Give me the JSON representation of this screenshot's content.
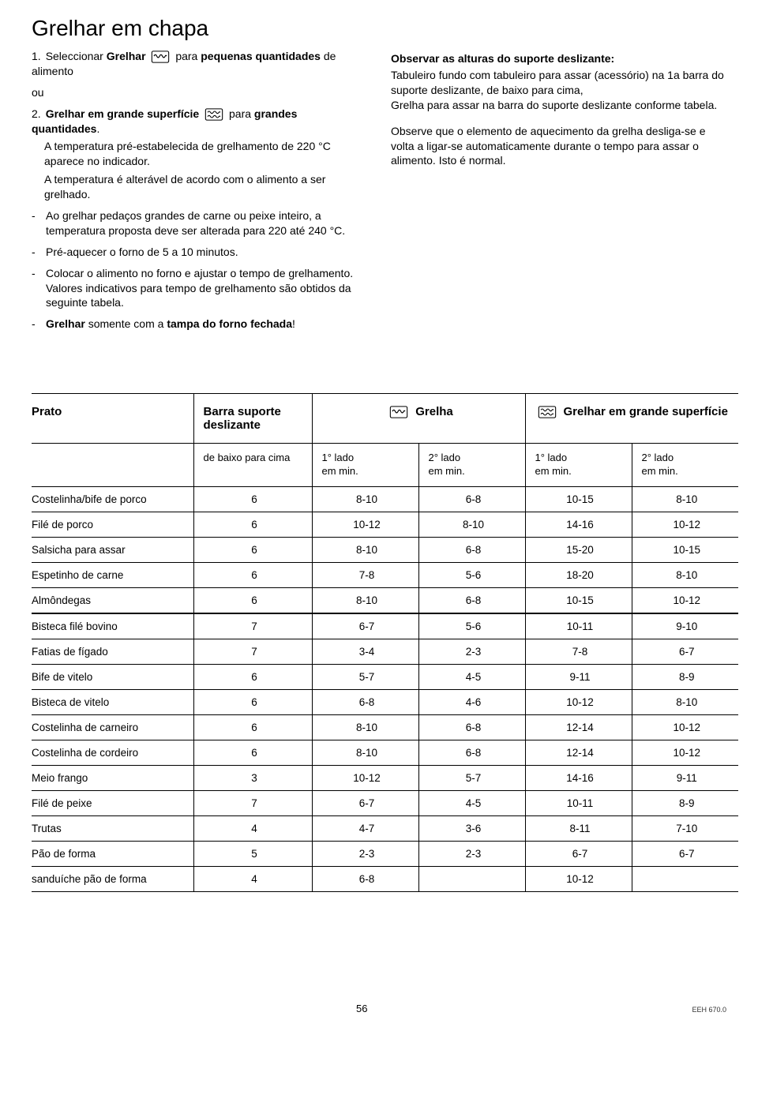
{
  "title": "Grelhar em chapa",
  "step1_pre": "Seleccionar ",
  "step1_b1": "Grelhar",
  "step1_mid": " para ",
  "step1_b2": "pequenas quantidades",
  "step1_post": " de alimento",
  "ou": "ou",
  "step2_b1": "Grelhar em grande superfície",
  "step2_mid": " para ",
  "step2_b2": "grandes quantidades",
  "step2_post": ".",
  "step2_sub1": "A temperatura pré-estabelecida de grelhamento de 220 °C aparece no indicador.",
  "step2_sub2": "A temperatura é alterável de acordo com o alimento a ser grelhado.",
  "d1": "Ao grelhar pedaços grandes de carne ou peixe inteiro, a temperatura proposta deve ser alterada para 220 até 240 °C.",
  "d2": "Pré-aquecer o forno de 5 a 10 minutos.",
  "d3": "Colocar o alimento no forno e ajustar o tempo de grelhamento. Valores indicativos para tempo de grelhamento são obtidos da seguinte tabela.",
  "d4_b": "Grelhar",
  "d4_mid": " somente com a ",
  "d4_b2": "tampa do forno fechada",
  "d4_post": "!",
  "obs_head": "Observar as alturas do suporte deslizante:",
  "obs_p1": "Tabuleiro fundo com tabuleiro para assar (acessório) na 1a barra do suporte deslizante, de baixo para cima,",
  "obs_p2": "Grelha para assar na barra do suporte deslizante conforme tabela.",
  "obs_p3": "Observe que o elemento de aquecimento da grelha desliga-se e volta a ligar-se automaticamente durante o tempo para assar o alimento. Isto é normal.",
  "th_prato": "Prato",
  "th_barra1": "Barra suporte",
  "th_barra2": "deslizante",
  "th_grelha": "Grelha",
  "th_grande": "Grelhar em grande superfície",
  "sub_baixo": "de baixo para cima",
  "sub_1lado": "1° lado",
  "sub_2lado": "2° lado",
  "sub_min": "em min.",
  "rows": [
    {
      "d": false,
      "c": [
        "Costelinha/bife de porco",
        "6",
        "8-10",
        "6-8",
        "10-15",
        "8-10"
      ]
    },
    {
      "d": false,
      "c": [
        "Filé de porco",
        "6",
        "10-12",
        "8-10",
        "14-16",
        "10-12"
      ]
    },
    {
      "d": false,
      "c": [
        "Salsicha para assar",
        "6",
        "8-10",
        "6-8",
        "15-20",
        "10-15"
      ]
    },
    {
      "d": false,
      "c": [
        "Espetinho de carne",
        "6",
        "7-8",
        "5-6",
        "18-20",
        "8-10"
      ]
    },
    {
      "d": false,
      "c": [
        "Almôndegas",
        "6",
        "8-10",
        "6-8",
        "10-15",
        "10-12"
      ]
    },
    {
      "d": true,
      "c": [
        "Bisteca filé bovino",
        "7",
        "6-7",
        "5-6",
        "10-11",
        "9-10"
      ]
    },
    {
      "d": false,
      "c": [
        "Fatias de fígado",
        "7",
        "3-4",
        "2-3",
        "7-8",
        "6-7"
      ]
    },
    {
      "d": false,
      "c": [
        "Bife de vitelo",
        "6",
        "5-7",
        "4-5",
        "9-11",
        "8-9"
      ]
    },
    {
      "d": false,
      "c": [
        "Bisteca de vitelo",
        "6",
        "6-8",
        "4-6",
        "10-12",
        "8-10"
      ]
    },
    {
      "d": false,
      "c": [
        "Costelinha de carneiro",
        "6",
        "8-10",
        "6-8",
        "12-14",
        "10-12"
      ]
    },
    {
      "d": false,
      "c": [
        "Costelinha de cordeiro",
        "6",
        "8-10",
        "6-8",
        "12-14",
        "10-12"
      ]
    },
    {
      "d": false,
      "c": [
        "Meio frango",
        "3",
        "10-12",
        "5-7",
        "14-16",
        "9-11"
      ]
    },
    {
      "d": false,
      "c": [
        "Filé de peixe",
        "7",
        "6-7",
        "4-5",
        "10-11",
        "8-9"
      ]
    },
    {
      "d": false,
      "c": [
        "Trutas",
        "4",
        "4-7",
        "3-6",
        "8-11",
        "7-10"
      ]
    },
    {
      "d": false,
      "c": [
        "Pão de forma",
        "5",
        "2-3",
        "2-3",
        "6-7",
        "6-7"
      ]
    },
    {
      "d": false,
      "c": [
        "sanduíche pão de forma",
        "4",
        "6-8",
        "",
        "10-12",
        ""
      ]
    }
  ],
  "page_num": "56",
  "doc_ref": "EEH 670.0"
}
